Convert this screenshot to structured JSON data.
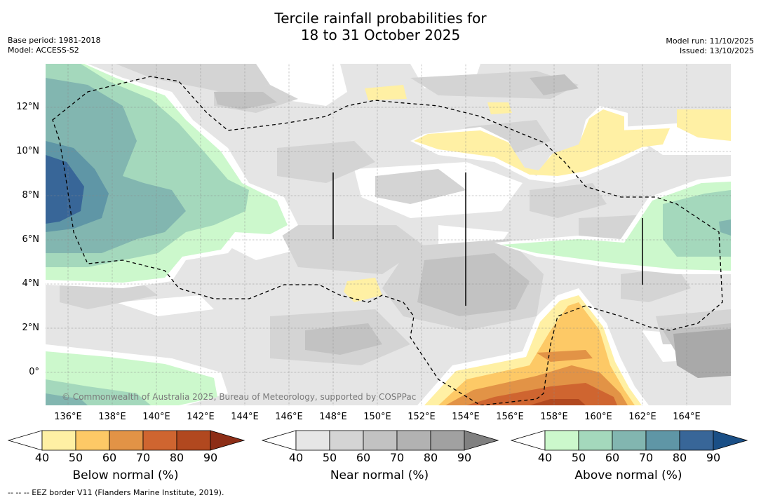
{
  "title": {
    "line1": "Tercile rainfall probabilities for",
    "line2": "18 to 31 October 2025"
  },
  "meta_left": {
    "base_period": "Base period: 1981-2018",
    "model": "Model: ACCESS-S2"
  },
  "meta_right": {
    "model_run": "Model run: 11/10/2025",
    "issued": "Issued: 13/10/2025"
  },
  "map": {
    "longitude_labels": [
      "136°E",
      "138°E",
      "140°E",
      "142°E",
      "144°E",
      "146°E",
      "148°E",
      "150°E",
      "152°E",
      "154°E",
      "156°E",
      "158°E",
      "160°E",
      "162°E",
      "164°E"
    ],
    "latitude_labels": [
      "12°N",
      "10°N",
      "8°N",
      "6°N",
      "4°N",
      "2°N",
      "0°"
    ],
    "copyright": "© Commonwealth of Australia 2025, Bureau of Meteorology, supported by COSPPac"
  },
  "colorbars": [
    {
      "name": "below",
      "label": "Below normal (%)",
      "ticks": [
        "40",
        "50",
        "60",
        "70",
        "80",
        "90"
      ],
      "colors": [
        "#fff0a4",
        "#fdc966",
        "#e29346",
        "#cf6530",
        "#b1481f",
        "#8d2e17"
      ]
    },
    {
      "name": "near",
      "label": "Near normal (%)",
      "ticks": [
        "40",
        "50",
        "60",
        "70",
        "80",
        "90"
      ],
      "colors": [
        "#e6e6e6",
        "#d4d4d4",
        "#c2c2c2",
        "#b2b2b2",
        "#a1a1a1",
        "#808080"
      ]
    },
    {
      "name": "above",
      "label": "Above normal (%)",
      "ticks": [
        "40",
        "50",
        "60",
        "70",
        "80",
        "90"
      ],
      "colors": [
        "#ccf8cc",
        "#a4d8bc",
        "#82b6b0",
        "#5f96a6",
        "#386698",
        "#1a4f86"
      ]
    }
  ],
  "footnote": "--  --  -- EEZ border V11 (Flanders Marine Institute, 2019).",
  "colors": {
    "background": "#ffffff",
    "map_base": "#e5e5e5",
    "grid": "#888888"
  }
}
